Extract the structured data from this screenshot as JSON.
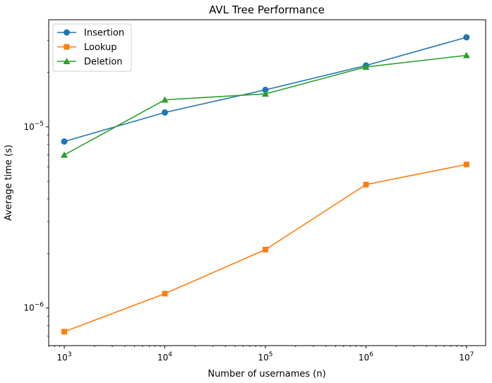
{
  "chart_data": {
    "type": "line",
    "title": "AVL Tree Performance",
    "xlabel": "Number of usernames (n)",
    "ylabel": "Average time (s)",
    "x_scale": "log",
    "y_scale": "log",
    "x": [
      1000,
      10000,
      100000,
      1000000,
      10000000
    ],
    "x_tick_labels": [
      {
        "base": "10",
        "exp": "3",
        "value": 1000
      },
      {
        "base": "10",
        "exp": "4",
        "value": 10000
      },
      {
        "base": "10",
        "exp": "5",
        "value": 100000
      },
      {
        "base": "10",
        "exp": "6",
        "value": 1000000
      },
      {
        "base": "10",
        "exp": "7",
        "value": 10000000
      }
    ],
    "y_tick_labels": [
      {
        "base": "10",
        "exp": "−6",
        "value": 1e-06
      },
      {
        "base": "10",
        "exp": "−5",
        "value": 1e-05
      }
    ],
    "xlim": [
      700,
      15500000
    ],
    "ylim": [
      6.2e-07,
      3.9e-05
    ],
    "legend_position": "top-left",
    "grid": false,
    "series": [
      {
        "name": "Insertion",
        "color": "#1f77b4",
        "marker": "circle",
        "values": [
          8.3e-06,
          1.2e-05,
          1.6e-05,
          2.18e-05,
          3.12e-05
        ]
      },
      {
        "name": "Lookup",
        "color": "#ff7f0e",
        "marker": "square",
        "values": [
          7.4e-07,
          1.2e-06,
          2.1e-06,
          4.8e-06,
          6.2e-06
        ]
      },
      {
        "name": "Deletion",
        "color": "#2ca02c",
        "marker": "triangle",
        "values": [
          7e-06,
          1.41e-05,
          1.52e-05,
          2.14e-05,
          2.48e-05
        ]
      }
    ]
  }
}
